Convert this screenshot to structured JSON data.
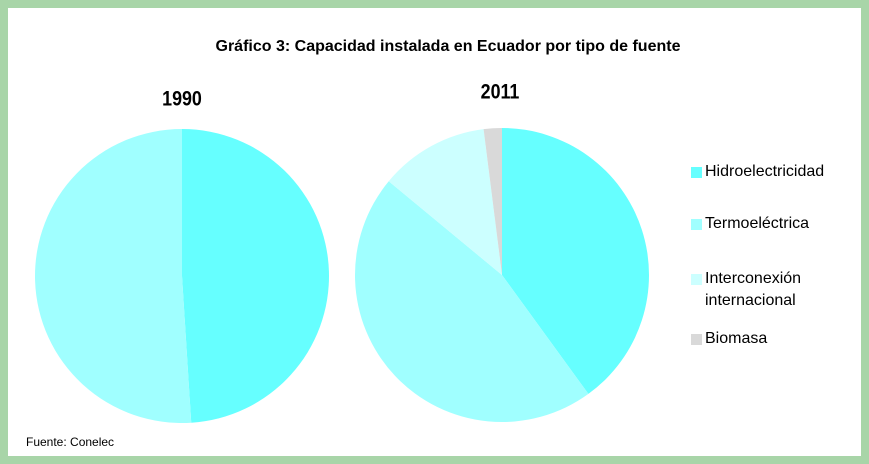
{
  "title": "Gráfico 3: Capacidad instalada en Ecuador por tipo de fuente",
  "source": "Fuente: Conelec",
  "chart_data": [
    {
      "type": "pie",
      "title": "1990",
      "categories": [
        "Hidroelectricidad",
        "Termoeléctrica"
      ],
      "values": [
        49,
        51
      ],
      "colors": [
        "#66ffff",
        "#a0ffff"
      ]
    },
    {
      "type": "pie",
      "title": "2011",
      "categories": [
        "Hidroelectricidad",
        "Termoeléctrica",
        "Interconexión internacional",
        "Biomasa"
      ],
      "values": [
        40,
        46,
        12,
        2
      ],
      "colors": [
        "#66ffff",
        "#a0ffff",
        "#ccffff",
        "#d9d9d9"
      ]
    }
  ]
}
